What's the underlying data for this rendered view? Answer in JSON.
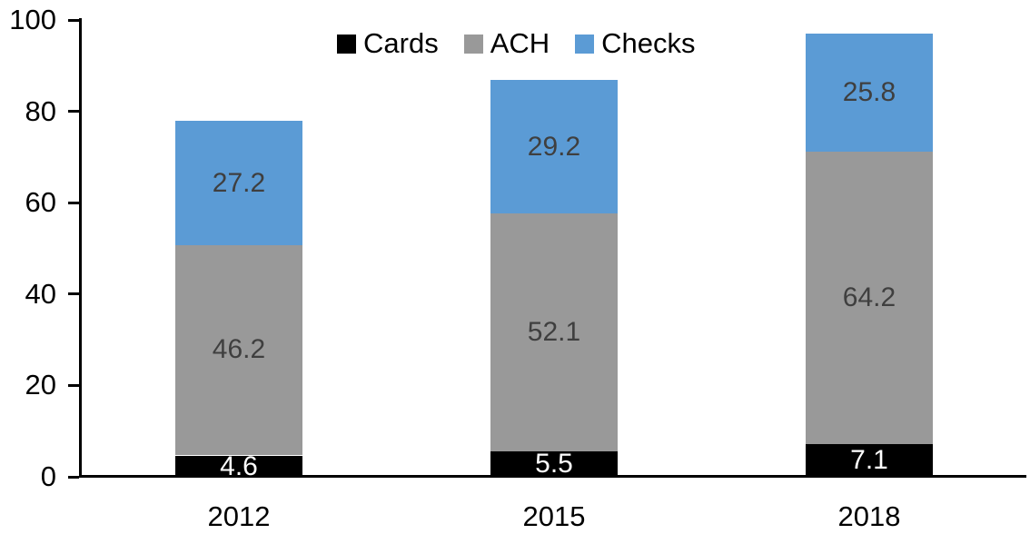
{
  "chart_data": {
    "type": "bar",
    "stacked": true,
    "title": "",
    "xlabel": "",
    "ylabel": "",
    "categories": [
      "2012",
      "2015",
      "2018"
    ],
    "series": [
      {
        "name": "Cards",
        "color": "#000000",
        "label_color": "#FFFFFF",
        "values": [
          4.6,
          5.5,
          7.1
        ]
      },
      {
        "name": "ACH",
        "color": "#999999",
        "label_color": "#3F3F3F",
        "values": [
          46.2,
          52.1,
          64.2
        ]
      },
      {
        "name": "Checks",
        "color": "#5B9BD5",
        "label_color": "#3F3F3F",
        "values": [
          27.2,
          29.2,
          25.8
        ]
      }
    ],
    "ylim": [
      0,
      100
    ],
    "yticks": [
      0,
      20,
      40,
      60,
      80,
      100
    ],
    "legend_position": "top",
    "grid": false,
    "axis_color": "#000000",
    "background": "#FFFFFF"
  }
}
